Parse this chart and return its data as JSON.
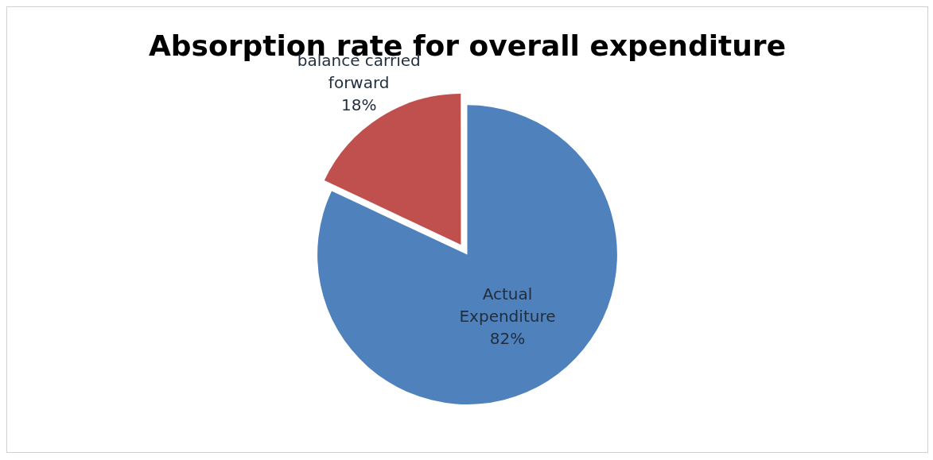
{
  "chart_data": {
    "type": "pie",
    "title": "Absorption rate for overall expenditure",
    "categories": [
      "Actual Expenditure",
      "balance carried forward"
    ],
    "values": [
      82,
      18
    ],
    "colors": [
      "#4f81bd",
      "#c0504d"
    ],
    "value_labels": [
      "82%",
      "18%"
    ],
    "legend": false
  }
}
